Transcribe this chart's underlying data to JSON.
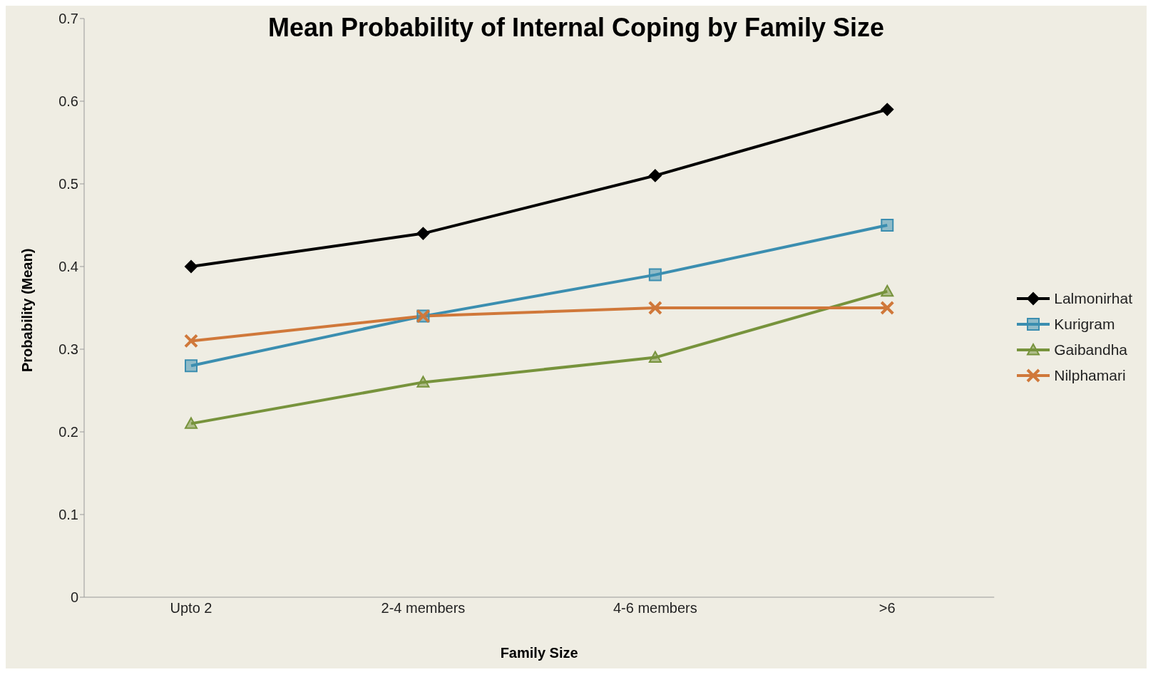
{
  "chart_data": {
    "type": "line",
    "title": "Mean Probability of Internal Coping by Family Size",
    "xlabel": "Family Size",
    "ylabel": "Probability (Mean)",
    "categories": [
      "Upto 2",
      "2-4 members",
      "4-6 members",
      ">6"
    ],
    "series": [
      {
        "name": "Lalmonirhat",
        "color": "#000000",
        "marker": "diamond",
        "values": [
          0.4,
          0.44,
          0.51,
          0.59
        ]
      },
      {
        "name": "Kurigram",
        "color": "#3b8eb0",
        "marker": "square",
        "values": [
          0.28,
          0.34,
          0.39,
          0.45
        ]
      },
      {
        "name": "Gaibandha",
        "color": "#77933c",
        "marker": "triangle",
        "values": [
          0.21,
          0.26,
          0.29,
          0.37
        ]
      },
      {
        "name": "Nilphamari",
        "color": "#d0783a",
        "marker": "cross",
        "values": [
          0.31,
          0.34,
          0.35,
          0.35
        ]
      }
    ],
    "ylim": [
      0,
      0.7
    ],
    "yticks": [
      0,
      0.1,
      0.2,
      0.3,
      0.4,
      0.5,
      0.6,
      0.7
    ],
    "grid": false,
    "legend": "right",
    "line_style": "solid"
  }
}
